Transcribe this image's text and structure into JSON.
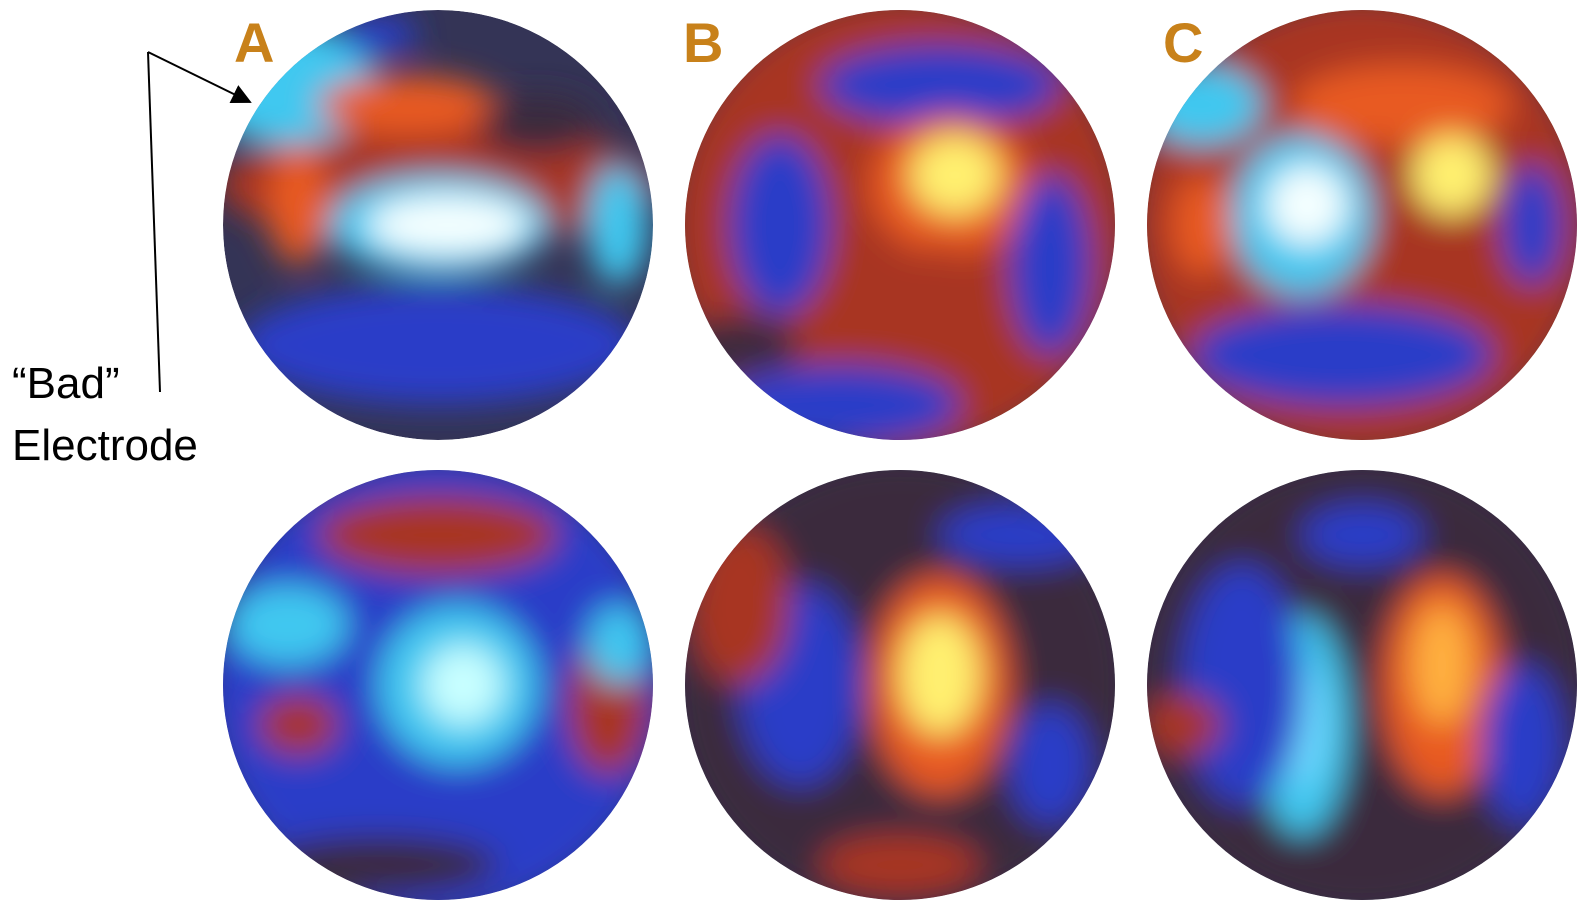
{
  "panels": [
    {
      "label": "A"
    },
    {
      "label": "B"
    },
    {
      "label": "C"
    }
  ],
  "annotation": {
    "line1": "“Bad”",
    "line2": "Electrode"
  }
}
